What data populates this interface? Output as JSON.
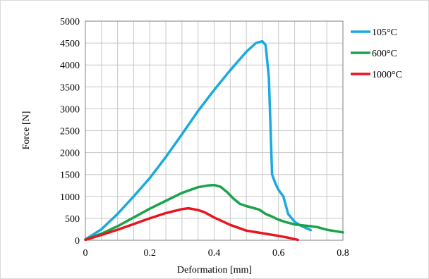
{
  "chart_data": {
    "type": "line",
    "xlabel": "Deformation [mm]",
    "ylabel": "Force [N]",
    "xlim": [
      0,
      0.8
    ],
    "ylim": [
      0,
      5000
    ],
    "x_ticks": [
      0,
      0.2,
      0.4,
      0.6,
      0.8
    ],
    "x_tick_labels": [
      "0",
      "0.2",
      "0.4",
      "0.6",
      "0.8"
    ],
    "x_minor_step": 0.05,
    "y_ticks": [
      0,
      500,
      1000,
      1500,
      2000,
      2500,
      3000,
      3500,
      4000,
      4500,
      5000
    ],
    "y_tick_labels": [
      "0",
      "500",
      "1000",
      "1500",
      "2000",
      "2500",
      "3000",
      "3500",
      "4000",
      "4500",
      "5000"
    ],
    "grid": true,
    "legend_position": "right",
    "series": [
      {
        "name": "105°C",
        "color": "#1aa9e0",
        "points": [
          [
            0,
            20
          ],
          [
            0.05,
            250
          ],
          [
            0.1,
            600
          ],
          [
            0.15,
            1000
          ],
          [
            0.2,
            1420
          ],
          [
            0.25,
            1900
          ],
          [
            0.3,
            2420
          ],
          [
            0.35,
            2950
          ],
          [
            0.4,
            3430
          ],
          [
            0.45,
            3880
          ],
          [
            0.5,
            4300
          ],
          [
            0.53,
            4500
          ],
          [
            0.55,
            4540
          ],
          [
            0.56,
            4450
          ],
          [
            0.57,
            3700
          ],
          [
            0.58,
            1500
          ],
          [
            0.59,
            1300
          ],
          [
            0.6,
            1150
          ],
          [
            0.615,
            1000
          ],
          [
            0.63,
            600
          ],
          [
            0.65,
            420
          ],
          [
            0.67,
            330
          ],
          [
            0.7,
            230
          ]
        ]
      },
      {
        "name": "600°C",
        "color": "#1aa34a",
        "points": [
          [
            0,
            20
          ],
          [
            0.05,
            150
          ],
          [
            0.1,
            320
          ],
          [
            0.15,
            520
          ],
          [
            0.2,
            720
          ],
          [
            0.25,
            900
          ],
          [
            0.3,
            1080
          ],
          [
            0.35,
            1210
          ],
          [
            0.38,
            1250
          ],
          [
            0.4,
            1260
          ],
          [
            0.42,
            1220
          ],
          [
            0.44,
            1100
          ],
          [
            0.46,
            950
          ],
          [
            0.48,
            830
          ],
          [
            0.5,
            780
          ],
          [
            0.52,
            740
          ],
          [
            0.54,
            700
          ],
          [
            0.56,
            600
          ],
          [
            0.58,
            540
          ],
          [
            0.6,
            470
          ],
          [
            0.62,
            420
          ],
          [
            0.65,
            360
          ],
          [
            0.7,
            320
          ],
          [
            0.72,
            300
          ],
          [
            0.75,
            240
          ],
          [
            0.8,
            180
          ]
        ]
      },
      {
        "name": "1000°C",
        "color": "#e8141e",
        "points": [
          [
            0,
            10
          ],
          [
            0.05,
            120
          ],
          [
            0.1,
            240
          ],
          [
            0.15,
            370
          ],
          [
            0.2,
            500
          ],
          [
            0.25,
            620
          ],
          [
            0.3,
            710
          ],
          [
            0.32,
            730
          ],
          [
            0.35,
            690
          ],
          [
            0.37,
            640
          ],
          [
            0.4,
            520
          ],
          [
            0.45,
            350
          ],
          [
            0.5,
            220
          ],
          [
            0.55,
            160
          ],
          [
            0.6,
            100
          ],
          [
            0.63,
            60
          ],
          [
            0.66,
            10
          ]
        ]
      }
    ]
  }
}
